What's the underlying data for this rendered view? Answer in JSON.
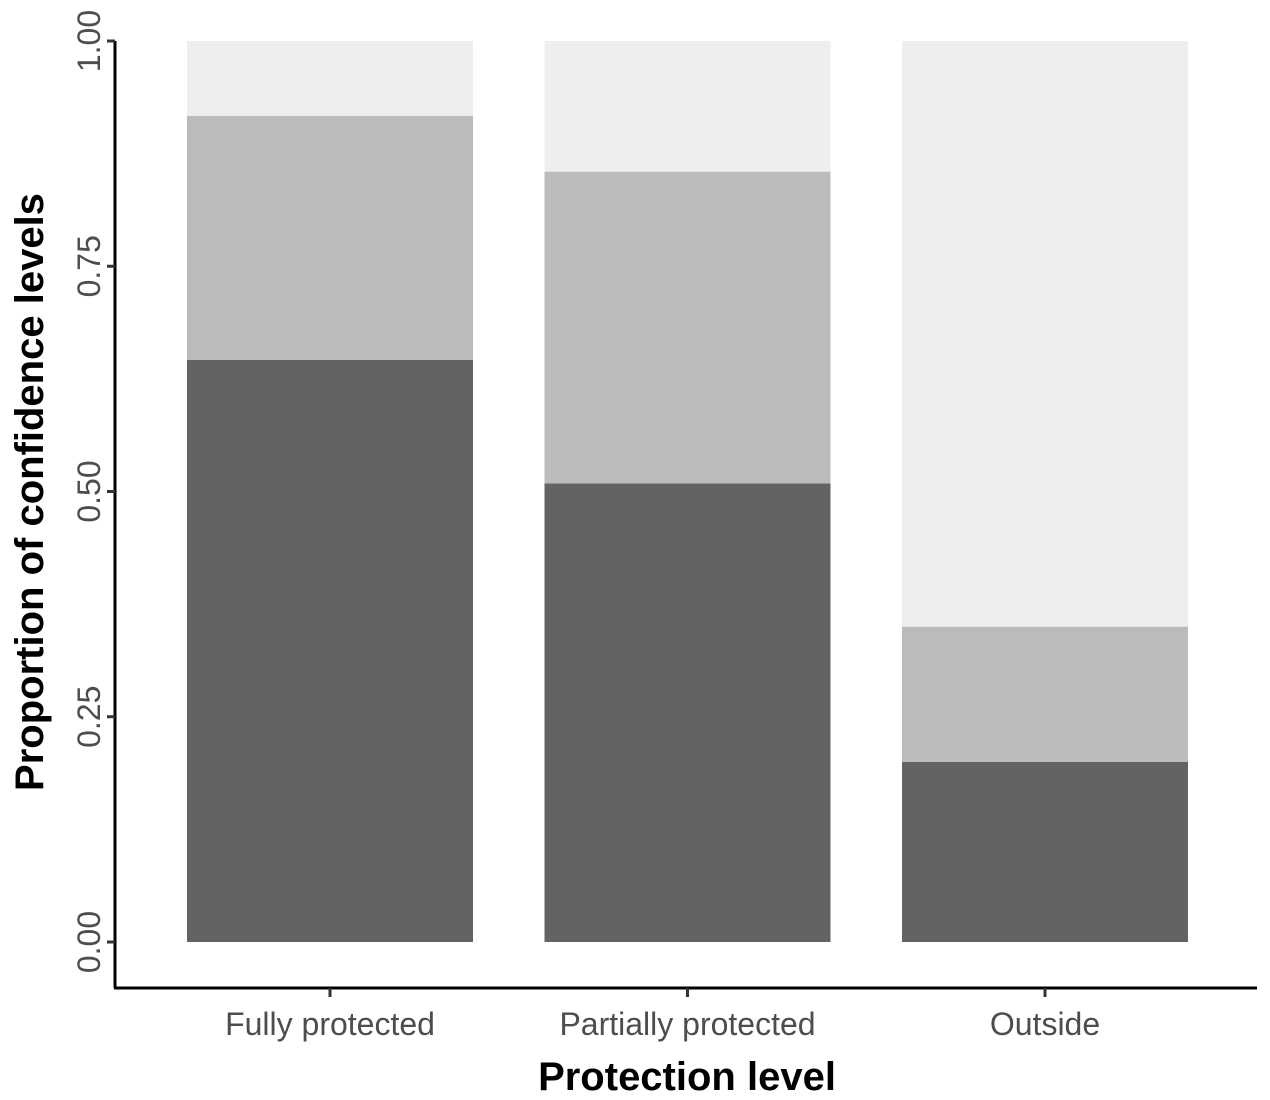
{
  "chart_data": {
    "type": "bar",
    "stacked": true,
    "categories": [
      "Fully protected",
      "Partially protected",
      "Outside"
    ],
    "series": [
      {
        "values": [
          0.646,
          0.509,
          0.2
        ],
        "color": "#636363"
      },
      {
        "values": [
          0.271,
          0.346,
          0.15
        ],
        "color": "#bbbbbb"
      },
      {
        "values": [
          0.083,
          0.145,
          0.65
        ],
        "color": "#eeeeee"
      }
    ],
    "xlabel": "Protection level",
    "ylabel": "Proportion of confidence levels",
    "yticks": [
      "0.00",
      "0.25",
      "0.50",
      "0.75",
      "1.00"
    ],
    "ylim": [
      0,
      1
    ],
    "grid": false,
    "legend": "none"
  }
}
